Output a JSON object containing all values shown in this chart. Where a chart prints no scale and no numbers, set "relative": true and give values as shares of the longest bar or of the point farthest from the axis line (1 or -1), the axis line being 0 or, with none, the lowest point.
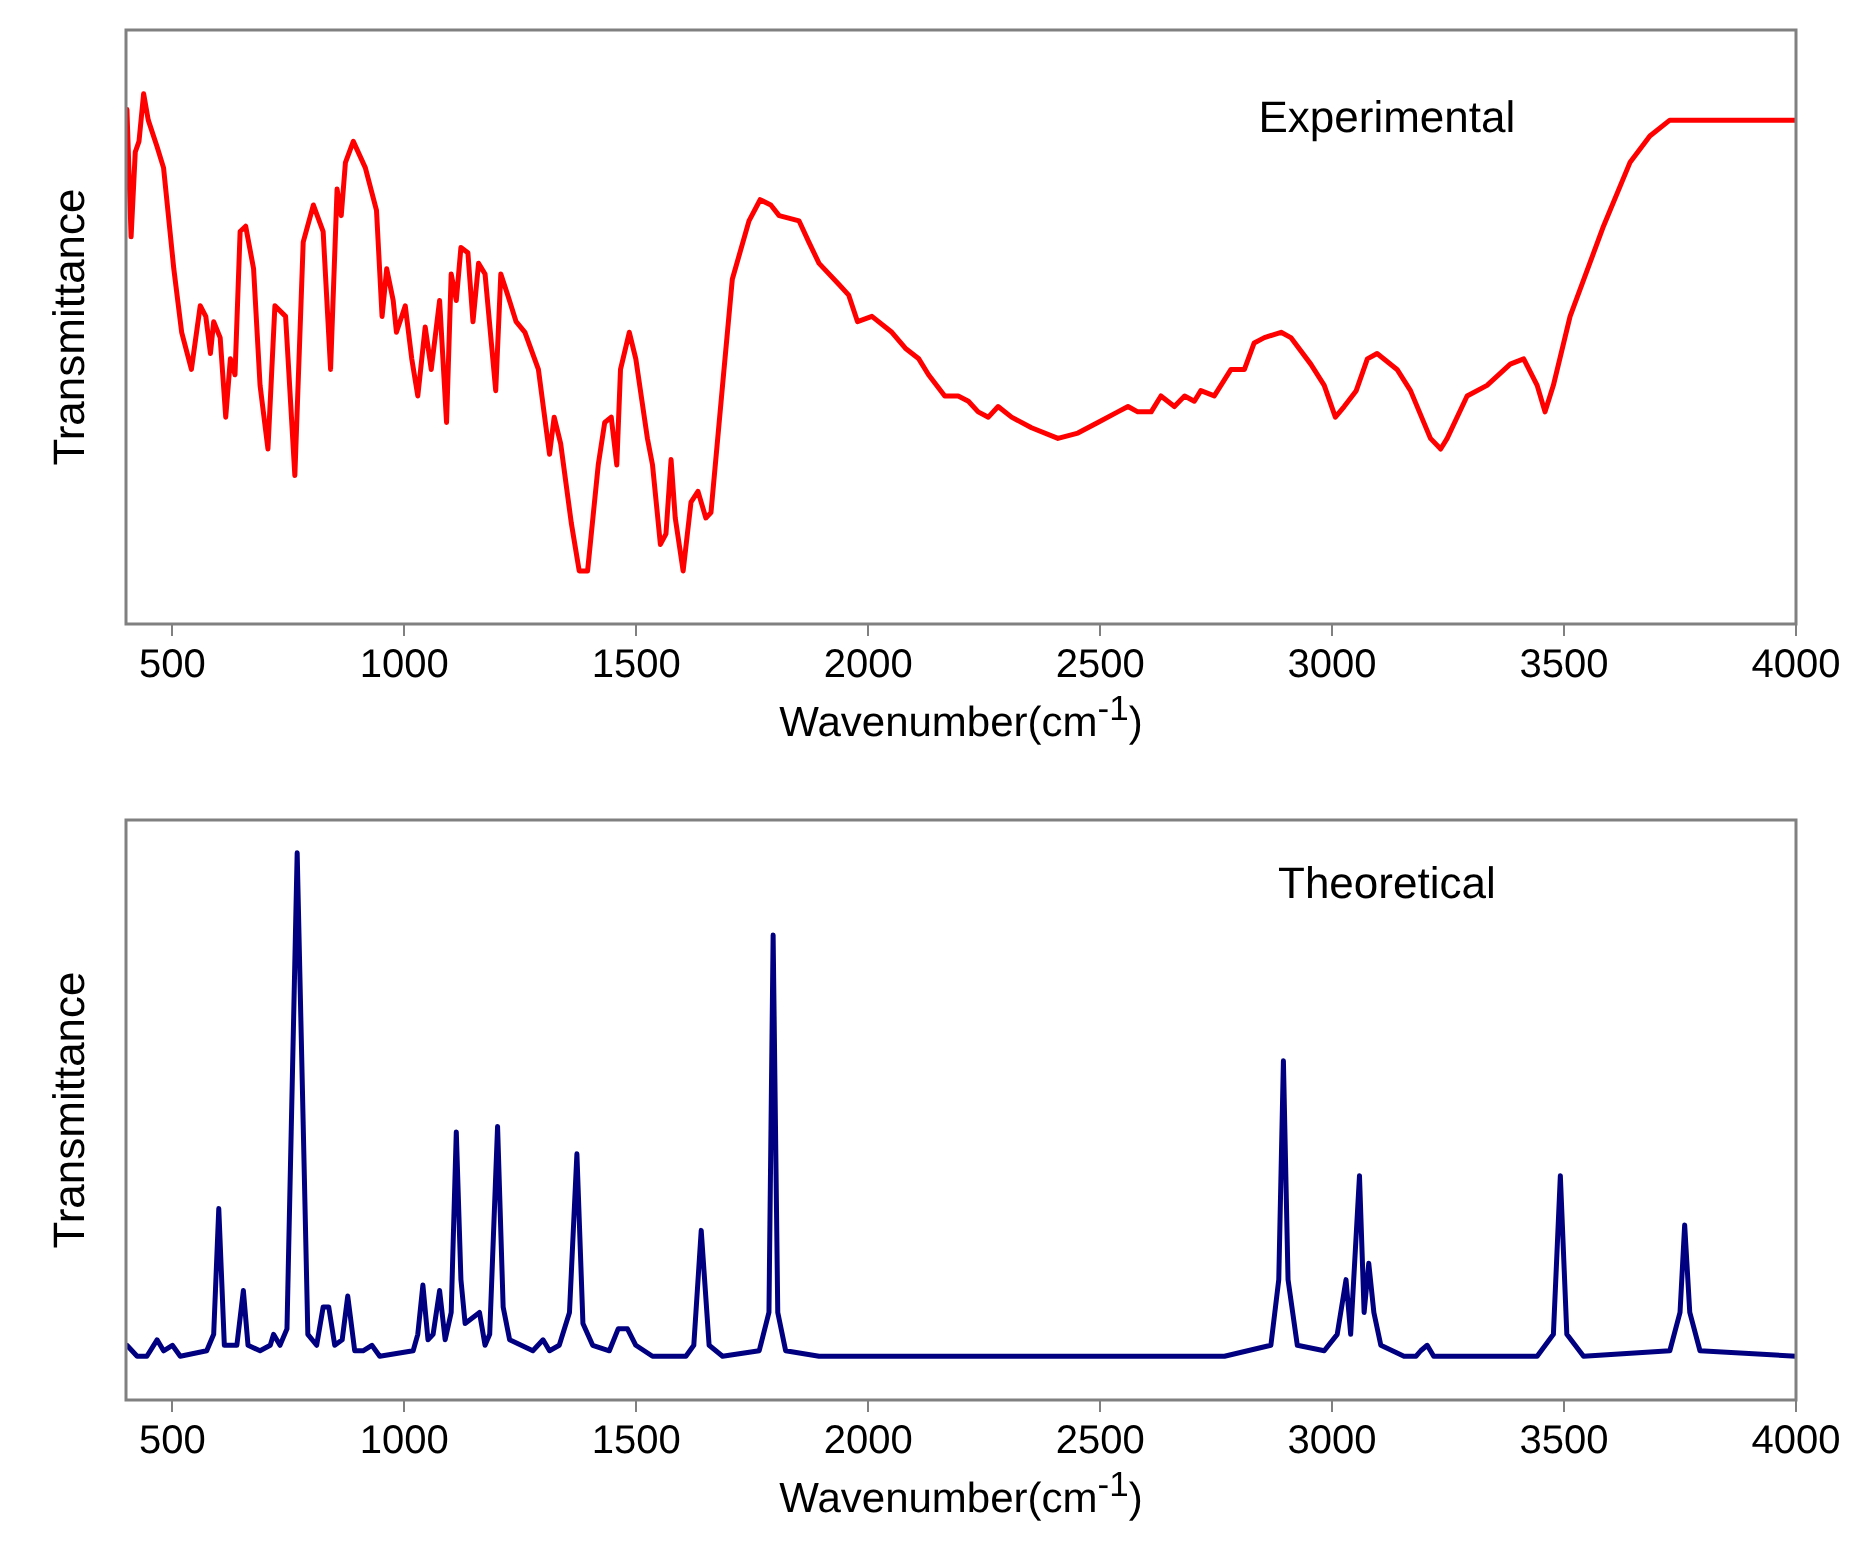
{
  "chart_data": [
    {
      "type": "line",
      "ylabel": "Transmittance",
      "xlabel": "Wavenumber(cm$^{-1}$)",
      "annotations": [
        "Experimental"
      ],
      "relative": true,
      "marker": "none",
      "xlim": [
        400,
        4000
      ],
      "xticks": [
        500,
        1000,
        1500,
        2000,
        2500,
        3000,
        3500,
        4000
      ],
      "grid": false,
      "series": [
        {
          "color": "#ff0000",
          "x": [
            402,
            411,
            420,
            428,
            438,
            448,
            467,
            481,
            503,
            520,
            541,
            560,
            572,
            582,
            589,
            603,
            615,
            625,
            635,
            646,
            658,
            675,
            689,
            706,
            721,
            744,
            764,
            782,
            804,
            825,
            841,
            855,
            864,
            873,
            890,
            916,
            940,
            952,
            962,
            976,
            983,
            1002,
            1016,
            1029,
            1045,
            1058,
            1076,
            1091,
            1101,
            1112,
            1122,
            1137,
            1148,
            1160,
            1174,
            1197,
            1208,
            1223,
            1241,
            1260,
            1289,
            1313,
            1323,
            1337,
            1360,
            1377,
            1395,
            1418,
            1432,
            1446,
            1458,
            1466,
            1485,
            1499,
            1524,
            1535,
            1552,
            1564,
            1575,
            1584,
            1601,
            1618,
            1633,
            1650,
            1661,
            1686,
            1707,
            1743,
            1767,
            1790,
            1808,
            1851,
            1872,
            1894,
            1937,
            1958,
            1977,
            2008,
            2051,
            2080,
            2109,
            2130,
            2165,
            2194,
            2216,
            2237,
            2259,
            2280,
            2309,
            2352,
            2409,
            2452,
            2495,
            2538,
            2560,
            2581,
            2610,
            2631,
            2660,
            2682,
            2703,
            2717,
            2746,
            2782,
            2811,
            2832,
            2854,
            2890,
            2911,
            2954,
            2983,
            3007,
            3026,
            3052,
            3076,
            3097,
            3140,
            3169,
            3212,
            3234,
            3248,
            3291,
            3334,
            3384,
            3413,
            3442,
            3459,
            3477,
            3513,
            3585,
            3642,
            3685,
            3728,
            3800,
            4000
          ],
          "values": [
            0.97,
            0.73,
            0.89,
            0.91,
            1.0,
            0.95,
            0.9,
            0.86,
            0.67,
            0.55,
            0.48,
            0.6,
            0.58,
            0.51,
            0.57,
            0.54,
            0.39,
            0.5,
            0.47,
            0.74,
            0.75,
            0.67,
            0.45,
            0.33,
            0.6,
            0.58,
            0.28,
            0.72,
            0.79,
            0.74,
            0.48,
            0.82,
            0.77,
            0.87,
            0.91,
            0.86,
            0.78,
            0.58,
            0.67,
            0.61,
            0.55,
            0.6,
            0.5,
            0.43,
            0.56,
            0.48,
            0.61,
            0.38,
            0.66,
            0.61,
            0.71,
            0.7,
            0.57,
            0.68,
            0.66,
            0.44,
            0.66,
            0.62,
            0.57,
            0.55,
            0.48,
            0.32,
            0.39,
            0.34,
            0.19,
            0.1,
            0.1,
            0.3,
            0.38,
            0.39,
            0.3,
            0.48,
            0.55,
            0.5,
            0.35,
            0.3,
            0.15,
            0.17,
            0.31,
            0.2,
            0.1,
            0.23,
            0.25,
            0.2,
            0.21,
            0.45,
            0.65,
            0.76,
            0.8,
            0.79,
            0.77,
            0.76,
            0.72,
            0.68,
            0.64,
            0.62,
            0.57,
            0.58,
            0.55,
            0.52,
            0.5,
            0.47,
            0.43,
            0.43,
            0.42,
            0.4,
            0.39,
            0.41,
            0.39,
            0.37,
            0.35,
            0.36,
            0.38,
            0.4,
            0.41,
            0.4,
            0.4,
            0.43,
            0.41,
            0.43,
            0.42,
            0.44,
            0.43,
            0.48,
            0.48,
            0.53,
            0.54,
            0.55,
            0.54,
            0.49,
            0.45,
            0.39,
            0.41,
            0.44,
            0.5,
            0.51,
            0.48,
            0.44,
            0.35,
            0.33,
            0.35,
            0.43,
            0.45,
            0.49,
            0.5,
            0.45,
            0.4,
            0.45,
            0.58,
            0.75,
            0.87,
            0.92,
            0.95,
            0.95,
            0.95
          ]
        }
      ]
    },
    {
      "type": "line",
      "ylabel": "Transmittance",
      "xlabel": "Wavenumber(cm$^{-1}$)",
      "annotations": [
        "Theoretical"
      ],
      "relative": true,
      "marker": "none",
      "xlim": [
        400,
        4000
      ],
      "xticks": [
        500,
        1000,
        1500,
        2000,
        2500,
        3000,
        3500,
        4000
      ],
      "grid": false,
      "series": [
        {
          "color": "#000080",
          "x": [
            402,
            424,
            445,
            467,
            481,
            500,
            517,
            574,
            589,
            600,
            612,
            639,
            653,
            663,
            689,
            711,
            718,
            732,
            747,
            769,
            792,
            811,
            825,
            837,
            850,
            866,
            878,
            893,
            911,
            930,
            947,
            1019,
            1029,
            1040,
            1051,
            1062,
            1076,
            1088,
            1101,
            1112,
            1122,
            1131,
            1162,
            1174,
            1184,
            1201,
            1213,
            1227,
            1277,
            1299,
            1313,
            1334,
            1356,
            1372,
            1385,
            1406,
            1442,
            1461,
            1481,
            1499,
            1535,
            1607,
            1624,
            1640,
            1657,
            1686,
            1765,
            1786,
            1795,
            1805,
            1822,
            1894,
            2768,
            2868,
            2885,
            2895,
            2905,
            2925,
            2983,
            3011,
            3030,
            3040,
            3059,
            3069,
            3079,
            3090,
            3105,
            3155,
            3181,
            3191,
            3205,
            3219,
            3442,
            3477,
            3492,
            3506,
            3542,
            3728,
            3750,
            3760,
            3771,
            3793,
            4000
          ],
          "values": [
            0.1,
            0.08,
            0.08,
            0.11,
            0.09,
            0.1,
            0.08,
            0.09,
            0.12,
            0.35,
            0.1,
            0.1,
            0.2,
            0.1,
            0.09,
            0.1,
            0.12,
            0.1,
            0.13,
            1.0,
            0.12,
            0.1,
            0.17,
            0.17,
            0.1,
            0.11,
            0.19,
            0.09,
            0.09,
            0.1,
            0.08,
            0.09,
            0.12,
            0.21,
            0.11,
            0.12,
            0.2,
            0.11,
            0.16,
            0.49,
            0.22,
            0.14,
            0.16,
            0.1,
            0.12,
            0.5,
            0.17,
            0.11,
            0.09,
            0.11,
            0.09,
            0.1,
            0.16,
            0.45,
            0.14,
            0.1,
            0.09,
            0.13,
            0.13,
            0.1,
            0.08,
            0.08,
            0.1,
            0.31,
            0.1,
            0.08,
            0.09,
            0.16,
            0.85,
            0.16,
            0.09,
            0.08,
            0.08,
            0.1,
            0.22,
            0.62,
            0.22,
            0.1,
            0.09,
            0.12,
            0.22,
            0.12,
            0.41,
            0.16,
            0.25,
            0.16,
            0.1,
            0.08,
            0.08,
            0.09,
            0.1,
            0.08,
            0.08,
            0.12,
            0.41,
            0.12,
            0.08,
            0.09,
            0.16,
            0.32,
            0.16,
            0.09,
            0.08
          ]
        }
      ]
    }
  ]
}
